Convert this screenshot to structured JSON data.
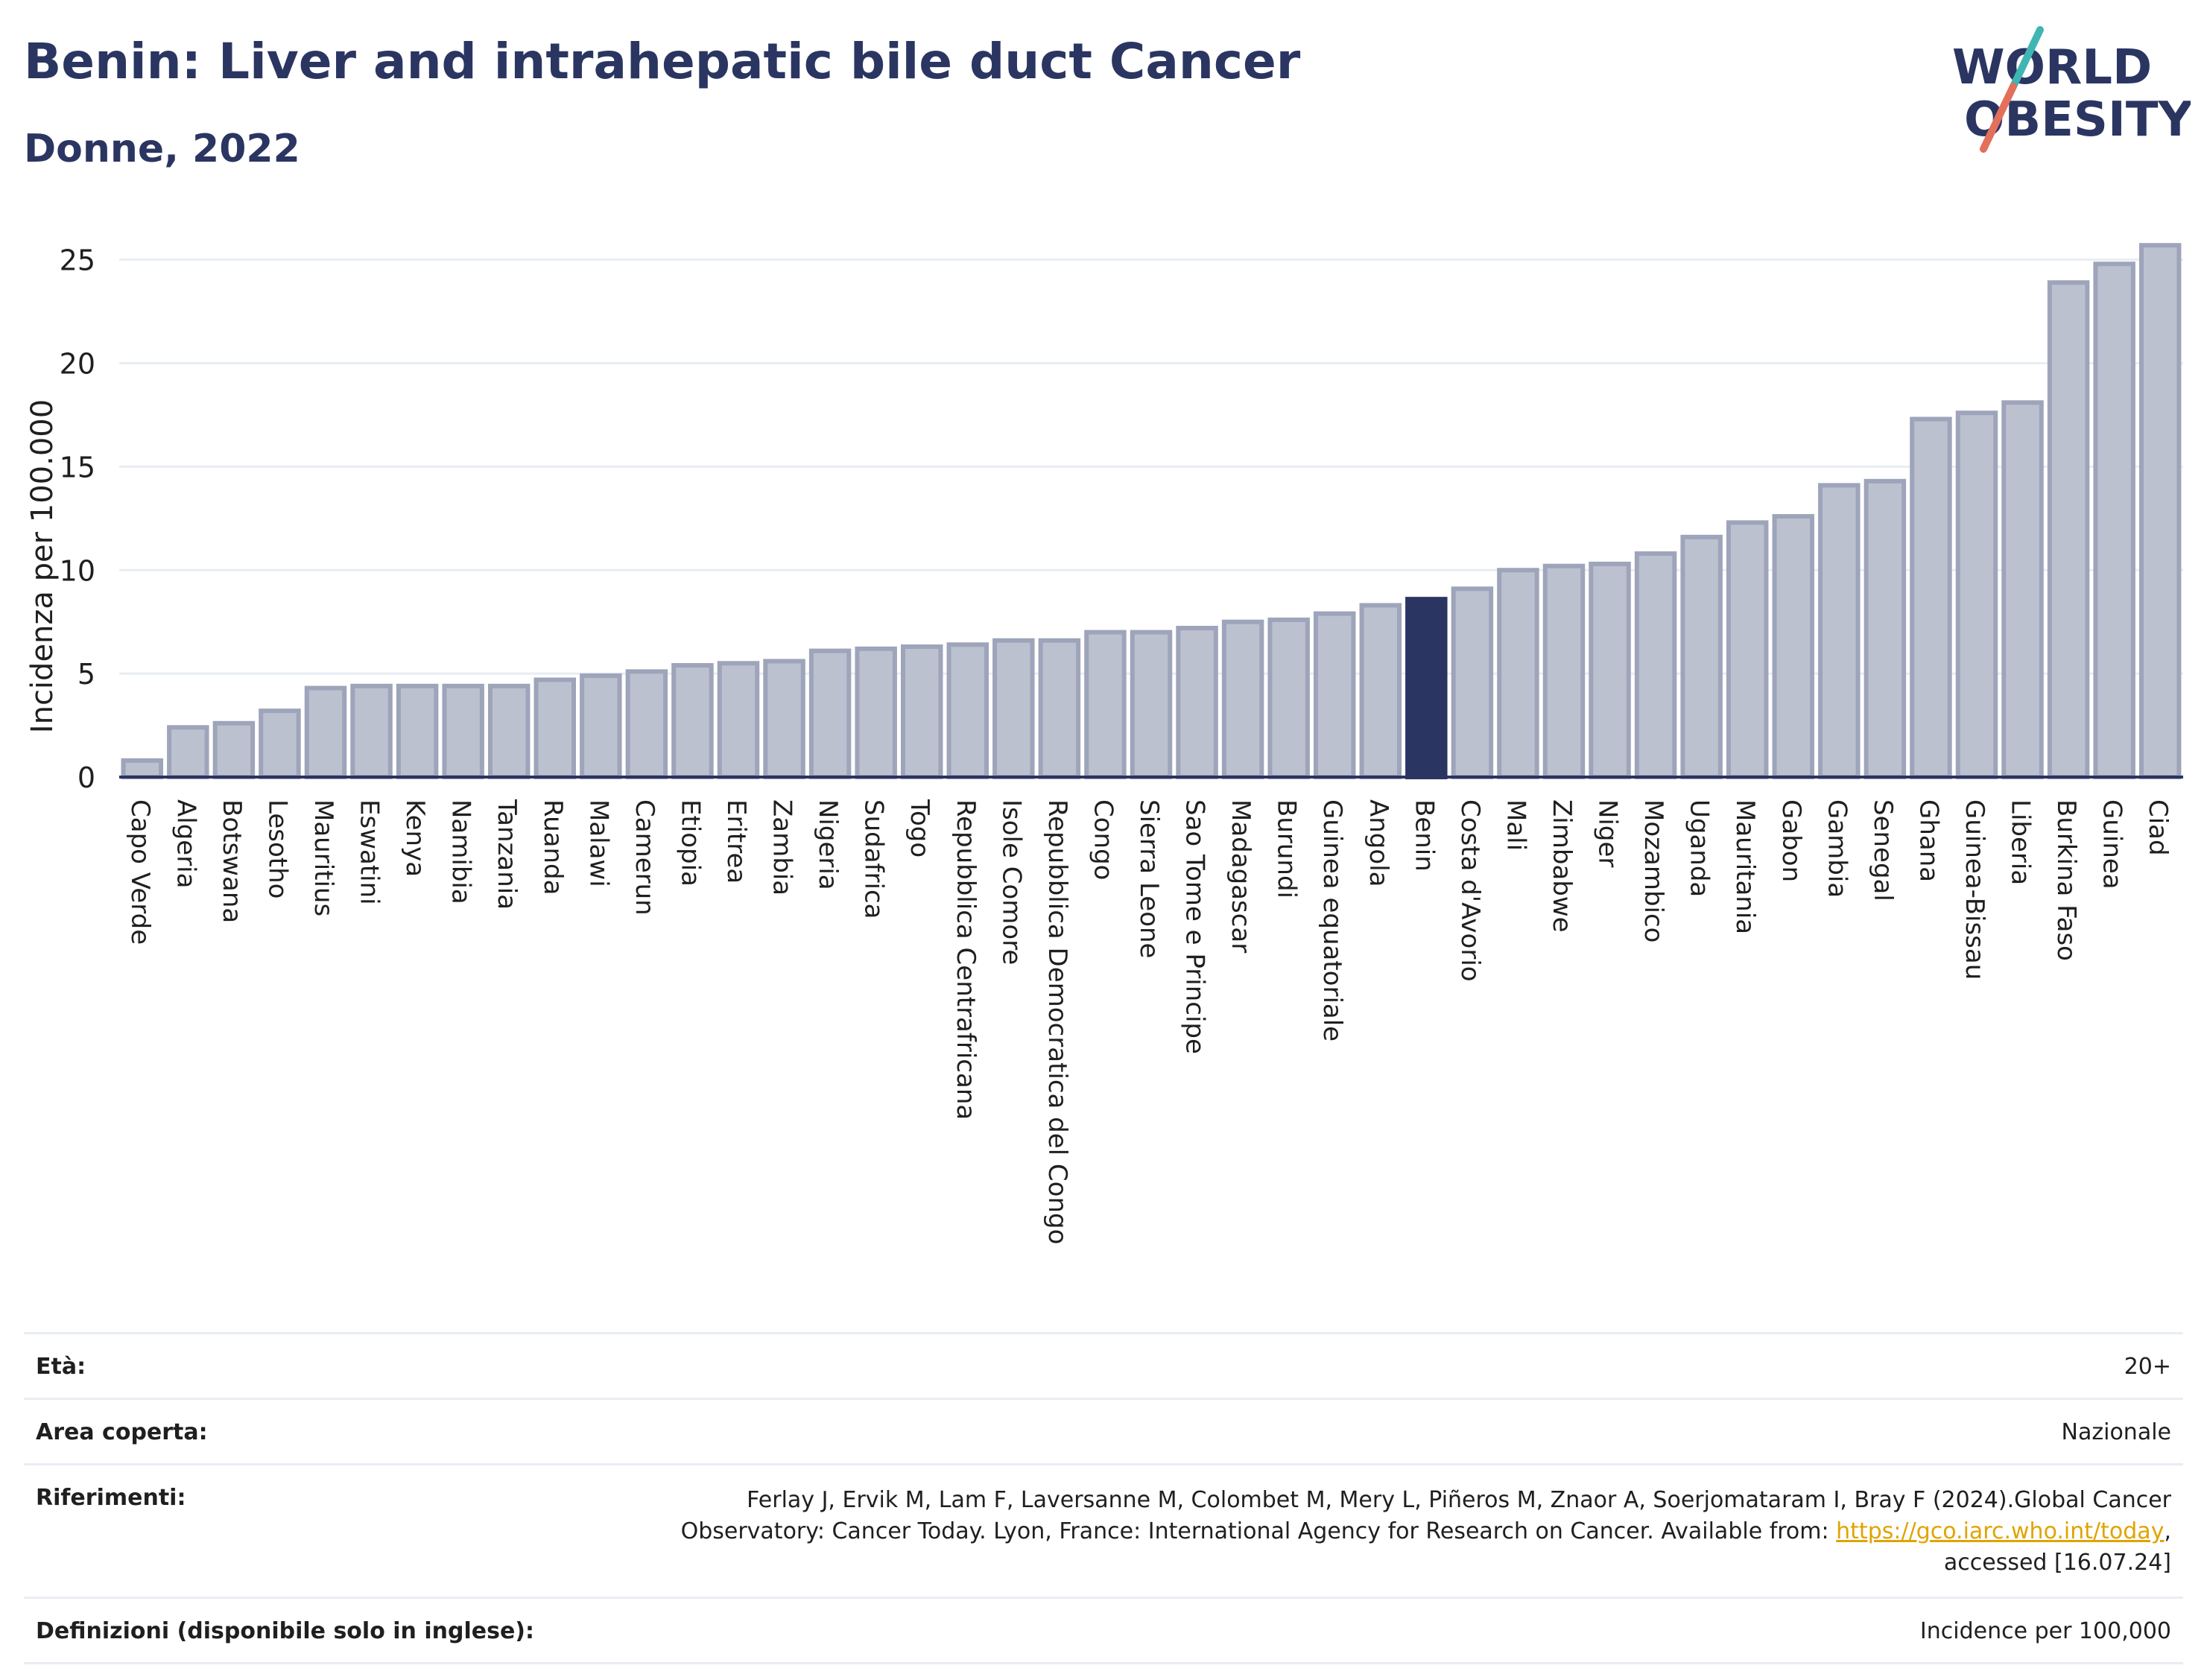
{
  "header": {
    "title": "Benin: Liver and intrahepatic bile duct Cancer",
    "subtitle": "Donne, 2022"
  },
  "logo": {
    "line1": "WORLD",
    "line2": "OBESITY",
    "accent_colors": [
      "#3fb6b3",
      "#e2705a"
    ]
  },
  "colors": {
    "bar": "#bcc1d0",
    "bar_border": "#9ea4ba",
    "highlight": "#2b3561",
    "grid": "#e8edf3",
    "axis_text": "#1f1f1f"
  },
  "chart_data": {
    "type": "bar",
    "title": "",
    "xlabel": "",
    "ylabel": "Incidenza per 100.000",
    "ylim": [
      0,
      26.5
    ],
    "yticks": [
      0,
      5,
      10,
      15,
      20,
      25
    ],
    "grid": true,
    "highlight": "Benin",
    "categories": [
      "Capo Verde",
      "Algeria",
      "Botswana",
      "Lesotho",
      "Mauritius",
      "Eswatini",
      "Kenya",
      "Namibia",
      "Tanzania",
      "Ruanda",
      "Malawi",
      "Camerun",
      "Etiopia",
      "Eritrea",
      "Zambia",
      "Nigeria",
      "Sudafrica",
      "Togo",
      "Repubblica Centrafricana",
      "Isole Comore",
      "Repubblica Democratica del Congo",
      "Congo",
      "Sierra Leone",
      "Sao Tome e Principe",
      "Madagascar",
      "Burundi",
      "Guinea equatoriale",
      "Angola",
      "Benin",
      "Costa d'Avorio",
      "Mali",
      "Zimbabwe",
      "Niger",
      "Mozambico",
      "Uganda",
      "Mauritania",
      "Gabon",
      "Gambia",
      "Senegal",
      "Ghana",
      "Guinea-Bissau",
      "Liberia",
      "Burkina Faso",
      "Guinea",
      "Ciad"
    ],
    "values": [
      0.8,
      2.4,
      2.6,
      3.2,
      4.3,
      4.4,
      4.4,
      4.4,
      4.4,
      4.7,
      4.9,
      5.1,
      5.4,
      5.5,
      5.6,
      6.1,
      6.2,
      6.3,
      6.4,
      6.6,
      6.6,
      7.0,
      7.0,
      7.2,
      7.5,
      7.6,
      7.9,
      8.3,
      8.6,
      9.1,
      10.0,
      10.2,
      10.3,
      10.8,
      11.6,
      12.3,
      12.6,
      14.1,
      14.3,
      17.3,
      17.6,
      18.1,
      23.9,
      24.8,
      25.7
    ]
  },
  "meta": {
    "age_label": "Età:",
    "age_value": "20+",
    "area_label": "Area coperta:",
    "area_value": "Nazionale",
    "ref_label": "Riferimenti:",
    "ref_text_1": "Ferlay J, Ervik M, Lam F, Laversanne M, Colombet M, Mery L, Piñeros M, Znaor A, Soerjomataram I, Bray F (2024).Global Cancer Observatory: Cancer Today. Lyon, France: International Agency for Research on Cancer. Available from: ",
    "ref_link": "https://gco.iarc.who.int/today",
    "ref_text_2": ", accessed [16.07.24]",
    "def_label": "Definizioni (disponibile solo in inglese):",
    "def_value": "Incidence per 100,000"
  }
}
